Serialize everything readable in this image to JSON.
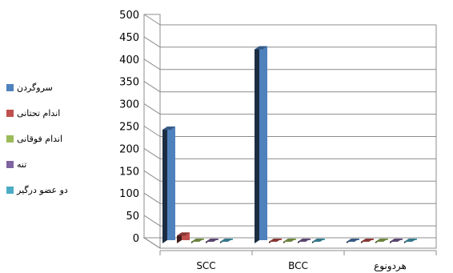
{
  "chart_data": {
    "type": "bar",
    "title": "",
    "xlabel": "",
    "ylabel": "",
    "ylim": [
      0,
      500
    ],
    "yticks": [
      0,
      50,
      100,
      150,
      200,
      250,
      300,
      350,
      400,
      450,
      500
    ],
    "grid": true,
    "legend_position": "left",
    "categories": [
      "SCC",
      "BCC",
      "هردونوع"
    ],
    "series": [
      {
        "name": "سروگردن",
        "color": "#4F81BD",
        "values": [
          265,
          445,
          1
        ]
      },
      {
        "name": "اندام تحتانی",
        "color": "#C0504D",
        "values": [
          28,
          1,
          0
        ]
      },
      {
        "name": "اندام فوقانی",
        "color": "#9BBB59",
        "values": [
          12,
          0,
          0
        ]
      },
      {
        "name": "تنه",
        "color": "#8064A2",
        "values": [
          5,
          0,
          0
        ]
      },
      {
        "name": "دو عضو درگیر",
        "color": "#4BACC6",
        "values": [
          1,
          1,
          0
        ]
      }
    ]
  }
}
